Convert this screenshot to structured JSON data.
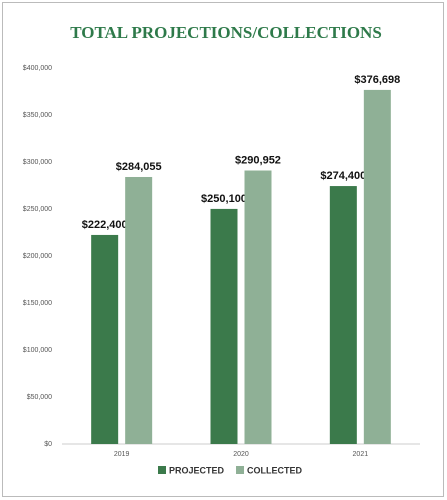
{
  "chart_data": {
    "type": "bar",
    "title": "TOTAL PROJECTIONS/COLLECTIONS",
    "categories": [
      "2019",
      "2020",
      "2021"
    ],
    "series": [
      {
        "name": "PROJECTED",
        "color": "#3b7a4b",
        "values": [
          222400,
          250100,
          274400
        ],
        "value_labels": [
          "$222,400",
          "$250,100",
          "$274,400"
        ]
      },
      {
        "name": "COLLECTED",
        "color": "#8fb096",
        "values": [
          284055,
          290952,
          376698
        ],
        "value_labels": [
          "$284,055",
          "$290,952",
          "$376,698"
        ]
      }
    ],
    "ylim": [
      0,
      400000
    ],
    "yticks": [
      {
        "value": 0,
        "label": "$0"
      },
      {
        "value": 50000,
        "label": "$50,000"
      },
      {
        "value": 100000,
        "label": "$100,000"
      },
      {
        "value": 150000,
        "label": "$150,000"
      },
      {
        "value": 200000,
        "label": "$200,000"
      },
      {
        "value": 250000,
        "label": "$250,000"
      },
      {
        "value": 300000,
        "label": "$300,000"
      },
      {
        "value": 350000,
        "label": "$350,000"
      },
      {
        "value": 400000,
        "label": "$400,000"
      }
    ],
    "grid": false,
    "legend": "bottom"
  }
}
